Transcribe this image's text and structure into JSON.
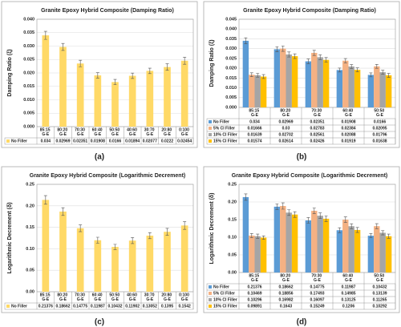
{
  "chart_data": [
    {
      "type": "bar",
      "caption": "(a)",
      "title": "Granite Epoxy Hybrid Composite (Damping Ratio)",
      "y_label": "Damping Ratio (ξ)",
      "categories": [
        "85:15 G-E",
        "80:20 G-E",
        "70:30 G-E",
        "60:40 G-E",
        "50:50 G-E",
        "40:60 G-E",
        "30:70 G-E",
        "20:80 G-E",
        "0:100 G-E"
      ],
      "series": [
        {
          "name": "No Filler",
          "color": "#ffd966",
          "values": [
            0.034,
            0.02969,
            0.02351,
            0.01908,
            0.0166,
            0.01894,
            0.02077,
            0.0222,
            0.02454
          ],
          "errors": [
            0.0015,
            0.0013,
            0.0012,
            0.001,
            0.001,
            0.001,
            0.001,
            0.0012,
            0.0013
          ]
        }
      ],
      "ylim": [
        0,
        0.04
      ],
      "yticks": [
        {
          "value": 0,
          "label": "0.000"
        },
        0.005,
        {
          "value": 0.01,
          "label": "0.010"
        },
        0.015,
        {
          "value": 0.02,
          "label": "0.020"
        },
        0.025,
        {
          "value": 0.03,
          "label": "0.030"
        },
        0.035,
        {
          "value": 0.04,
          "label": "0.040"
        }
      ],
      "grid": true
    },
    {
      "type": "bar",
      "caption": "(b)",
      "title": "Granite Epoxy Hybrid Composite (Damping Ratio)",
      "y_label": "Damping Ratio (ξ)",
      "categories": [
        "85:15 G-E",
        "80:20 G-E",
        "70:30 G-E",
        "60:40 G-E",
        "50:50 G-E"
      ],
      "series": [
        {
          "name": "No Filler",
          "color": "#5b9bd5",
          "values": [
            0.034,
            0.02969,
            0.02351,
            0.01908,
            0.0166
          ],
          "errors": [
            0.0015,
            0.0013,
            0.0012,
            0.001,
            0.001
          ]
        },
        {
          "name": "5% CI Filler",
          "color": "#f4b183",
          "values": [
            0.01666,
            0.03,
            0.02783,
            0.02384,
            0.02095
          ],
          "errors": [
            0.001,
            0.0014,
            0.0013,
            0.0011,
            0.001
          ]
        },
        {
          "name": "10% CI Filler",
          "color": "#a5a5a5",
          "values": [
            0.01639,
            0.02702,
            0.02561,
            0.02088,
            0.01796
          ],
          "errors": [
            0.001,
            0.0013,
            0.0012,
            0.001,
            0.001
          ]
        },
        {
          "name": "15% CI Filler",
          "color": "#ffc000",
          "values": [
            0.01574,
            0.02614,
            0.02426,
            0.01919,
            0.01638
          ],
          "errors": [
            0.001,
            0.0012,
            0.0012,
            0.001,
            0.001
          ]
        }
      ],
      "ylim": [
        0,
        0.045
      ],
      "yticks": [
        {
          "value": 0,
          "label": "0.000"
        },
        0.005,
        {
          "value": 0.01,
          "label": "0.010"
        },
        0.015,
        {
          "value": 0.02,
          "label": "0.020"
        },
        0.025,
        {
          "value": 0.03,
          "label": "0.030"
        },
        0.035,
        {
          "value": 0.04,
          "label": "0.040"
        },
        0.045
      ],
      "grid": true
    },
    {
      "type": "bar",
      "caption": "(c)",
      "title": "Granite Epoxy Hybrid Composite (Logarithmic Decrement)",
      "y_label": "Logarithmic Decrement (δ)",
      "categories": [
        "85:15 G-E",
        "80:20 G-E",
        "70:30 G-E",
        "60:40 G-E",
        "50:50 G-E",
        "40:60 G-E",
        "30:70 G-E",
        "20:80 G-E",
        "0:100 G-E"
      ],
      "series": [
        {
          "name": "No Filler",
          "color": "#ffd966",
          "values": [
            0.21376,
            0.18662,
            0.14775,
            0.11987,
            0.10432,
            0.11902,
            0.13052,
            0.1395,
            0.1542
          ],
          "errors": [
            0.01,
            0.009,
            0.008,
            0.007,
            0.006,
            0.007,
            0.007,
            0.008,
            0.009
          ]
        }
      ],
      "ylim": [
        0,
        0.25
      ],
      "yticks": [
        {
          "value": 0,
          "label": "0.00"
        },
        0.05,
        {
          "value": 0.1,
          "label": "0.10"
        },
        0.15,
        {
          "value": 0.2,
          "label": "0.20"
        },
        0.25
      ],
      "grid": true
    },
    {
      "type": "bar",
      "caption": "(d)",
      "title": "Granite Epoxy Hybrid Composite (Logarithmic Decrement)",
      "y_label": "Logarithmic Decrement (δ)",
      "categories": [
        "85:15 G-E",
        "80:20 G-E",
        "70:30 G-E",
        "60:40 G-E",
        "50:50 G-E"
      ],
      "series": [
        {
          "name": "No Filler",
          "color": "#5b9bd5",
          "values": [
            0.21376,
            0.18662,
            0.14775,
            0.11987,
            0.10432
          ],
          "errors": [
            0.009,
            0.008,
            0.008,
            0.007,
            0.006
          ]
        },
        {
          "name": "5% CI Filler",
          "color": "#f4b183",
          "values": [
            0.10469,
            0.18856,
            0.17493,
            0.14985,
            0.13139
          ],
          "errors": [
            0.006,
            0.009,
            0.008,
            0.008,
            0.007
          ]
        },
        {
          "name": "10% CI Filler",
          "color": "#a5a5a5",
          "values": [
            0.10296,
            0.16982,
            0.16097,
            0.13125,
            0.11265
          ],
          "errors": [
            0.006,
            0.008,
            0.008,
            0.007,
            0.006
          ]
        },
        {
          "name": "15% CI Filler",
          "color": "#ffc000",
          "values": [
            0.09891,
            0.1643,
            0.15249,
            0.1206,
            0.10292
          ],
          "errors": [
            0.005,
            0.008,
            0.008,
            0.007,
            0.006
          ]
        }
      ],
      "ylim": [
        0,
        0.25
      ],
      "yticks": [
        {
          "value": 0,
          "label": "0.00"
        },
        0.05,
        {
          "value": 0.1,
          "label": "0.10"
        },
        0.15,
        {
          "value": 0.2,
          "label": "0.20"
        },
        0.25
      ],
      "grid": true
    }
  ]
}
